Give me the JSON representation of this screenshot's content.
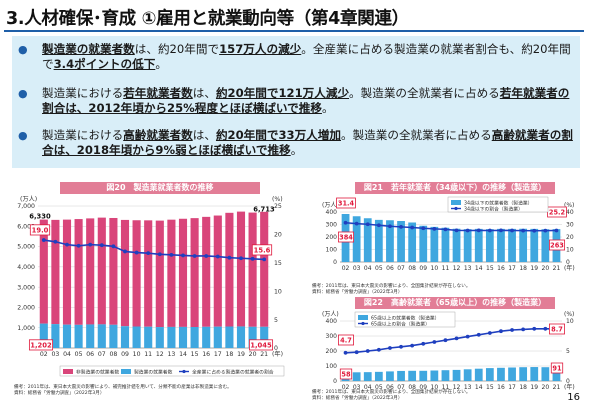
{
  "title": "3.人材確保･育成 ①雇用と就業動向等（第4章関連）",
  "bullets": [
    {
      "parts": [
        {
          "t": "製造業の就業者数",
          "em": true
        },
        {
          "t": "は、約20年間で",
          "em": false
        },
        {
          "t": "157万人の減少",
          "em": true
        },
        {
          "t": "。全産業に占める製造業の就業者割合も、約20年間で",
          "em": false
        },
        {
          "t": "3.4ポイントの低下",
          "em": true
        },
        {
          "t": "。",
          "em": false
        }
      ]
    },
    {
      "parts": [
        {
          "t": "製造業における",
          "em": false
        },
        {
          "t": "若年就業者数",
          "em": true
        },
        {
          "t": "は、",
          "em": false
        },
        {
          "t": "約20年間で121万人減少",
          "em": true
        },
        {
          "t": "。製造業の全就業者に占める",
          "em": false
        },
        {
          "t": "若年就業者の割合は、2012年頃から25%程度とほぼ横ばいで推移",
          "em": true
        },
        {
          "t": "。",
          "em": false
        }
      ]
    },
    {
      "parts": [
        {
          "t": "製造業における",
          "em": false
        },
        {
          "t": "高齢就業者数",
          "em": true
        },
        {
          "t": "は、",
          "em": false
        },
        {
          "t": "約20年間で33万人増加",
          "em": true
        },
        {
          "t": "。製造業の全就業者に占める",
          "em": false
        },
        {
          "t": "高齢就業者の割合は、2018年頃から9%弱とほぼ横ばいで推移",
          "em": true
        },
        {
          "t": "。",
          "em": false
        }
      ]
    }
  ],
  "chart_data": [
    {
      "type": "bar",
      "title": "図20　製造業就業者数の推移",
      "xlabel": "",
      "ylabel": "(万人)",
      "y2label": "(%)",
      "ylim": [
        0,
        7000
      ],
      "yticks": [
        "0",
        "1,000",
        "2,000",
        "3,000",
        "4,000",
        "5,000",
        "6,000",
        "7,000"
      ],
      "y2lim": [
        0,
        25
      ],
      "y2ticks": [
        "0",
        "5",
        "10",
        "15",
        "20",
        "25"
      ],
      "categories": [
        "02",
        "03",
        "04",
        "05",
        "06",
        "07",
        "08",
        "09",
        "10",
        "11",
        "12",
        "13",
        "14",
        "15",
        "16",
        "17",
        "18",
        "19",
        "20",
        "21"
      ],
      "x_unit": "(年)",
      "series": [
        {
          "name": "非製造業の就業者数",
          "kind": "bar-top",
          "color": "#d9457a",
          "values": [
            6330,
            6316,
            6329,
            6356,
            6389,
            6427,
            6409,
            6314,
            6298,
            6293,
            6280,
            6326,
            6371,
            6402,
            6465,
            6530,
            6664,
            6724,
            6676,
            6713
          ]
        },
        {
          "name": "製造業の就業者数",
          "kind": "bar-bottom",
          "color": "#3fa7df",
          "values": [
            1202,
            1178,
            1150,
            1142,
            1161,
            1165,
            1144,
            1073,
            1060,
            1049,
            1032,
            1039,
            1040,
            1035,
            1045,
            1052,
            1060,
            1063,
            1045,
            1045
          ]
        },
        {
          "name": "全産業に占める製造業の就業者の割合",
          "kind": "line-right",
          "color": "#1f3fbf",
          "values": [
            19.0,
            18.7,
            18.2,
            18.0,
            18.2,
            18.1,
            17.9,
            17.0,
            16.8,
            16.7,
            16.5,
            16.4,
            16.3,
            16.2,
            16.2,
            16.1,
            15.9,
            15.8,
            15.7,
            15.6
          ]
        }
      ],
      "labels": {
        "first_total": "6,330",
        "last_total": "6,713",
        "first_mfg": "1,202",
        "last_mfg": "1,045",
        "first_pct": "19.0",
        "last_pct": "15.6"
      },
      "legend": [
        "非製造業の就業者数",
        "製造業の就業者数",
        "全産業に占める製造業の就業者の割合"
      ],
      "notes": [
        "備考：2011年は、東日本大震災の影響により、補完推計値を用いて、分類不能の産業は非製造業に含む。",
        "資料：総務省「労働力調査」（2022年3月）"
      ]
    },
    {
      "type": "bar",
      "title": "図21　若年就業者（34歳以下）の推移（製造業）",
      "ylabel": "(万人)",
      "y2label": "(%)",
      "ylim": [
        0,
        400
      ],
      "yticks": [
        "0",
        "100",
        "200",
        "300",
        "400"
      ],
      "y2lim": [
        0,
        40
      ],
      "y2ticks": [
        "0",
        "10",
        "20",
        "30",
        "40"
      ],
      "categories": [
        "02",
        "03",
        "04",
        "05",
        "06",
        "07",
        "08",
        "09",
        "10",
        "11",
        "12",
        "13",
        "14",
        "15",
        "16",
        "17",
        "18",
        "19",
        "20",
        "21"
      ],
      "x_unit": "(年)",
      "series": [
        {
          "name": "34歳以下の就業者数（製造業）",
          "kind": "bar",
          "color": "#3fa7df",
          "values": [
            384,
            366,
            350,
            337,
            334,
            328,
            316,
            290,
            281,
            274,
            266,
            263,
            265,
            263,
            265,
            265,
            266,
            265,
            262,
            263
          ]
        },
        {
          "name": "34歳以下の割合（製造業）",
          "kind": "line-right",
          "color": "#1f3fbf",
          "values": [
            31.4,
            30.7,
            30.2,
            29.4,
            28.6,
            28.1,
            27.6,
            27.0,
            26.5,
            26.1,
            25.3,
            25.2,
            25.3,
            25.2,
            25.3,
            25.2,
            25.1,
            25.0,
            25.1,
            25.2
          ]
        }
      ],
      "labels": {
        "first_bar": "384",
        "last_bar": "263",
        "first_pct": "31.4",
        "last_pct": "25.2"
      },
      "legend": [
        "34歳以下の就業者数（製造業）",
        "34歳以下の割合（製造業）"
      ],
      "notes": [
        "備考：2011年は、東日本大震災の影響により、全国集計結果が存在しない。",
        "資料：総務省「労働力調査」（2022年3月）"
      ]
    },
    {
      "type": "bar",
      "title": "図22　高齢就業者（65歳以上）の推移（製造業）",
      "ylabel": "(万人)",
      "y2label": "(%)",
      "ylim": [
        0,
        400
      ],
      "yticks": [
        "0",
        "100",
        "200",
        "300",
        "400"
      ],
      "y2lim": [
        0,
        10
      ],
      "y2ticks": [
        "0",
        "5",
        "10"
      ],
      "categories": [
        "02",
        "03",
        "04",
        "05",
        "06",
        "07",
        "08",
        "09",
        "10",
        "11",
        "12",
        "13",
        "14",
        "15",
        "16",
        "17",
        "18",
        "19",
        "20",
        "21"
      ],
      "x_unit": "(年)",
      "series": [
        {
          "name": "65歳以上の就業者数（製造業）",
          "kind": "bar",
          "color": "#3fa7df",
          "values": [
            58,
            58,
            59,
            61,
            64,
            67,
            68,
            68,
            70,
            72,
            74,
            78,
            82,
            86,
            88,
            90,
            92,
            93,
            92,
            91
          ]
        },
        {
          "name": "65歳以上の割合（製造業）",
          "kind": "line-right",
          "color": "#1f3fbf",
          "values": [
            4.7,
            4.8,
            5.0,
            5.2,
            5.5,
            5.7,
            5.9,
            6.2,
            6.5,
            6.8,
            7.1,
            7.4,
            7.7,
            8.0,
            8.3,
            8.5,
            8.6,
            8.7,
            8.7,
            8.7
          ]
        }
      ],
      "labels": {
        "first_bar": "58",
        "last_bar": "91",
        "first_pct": "4.7",
        "last_pct": "8.7"
      },
      "legend": [
        "65歳以上の就業者数（製造業）",
        "65歳以上の割合（製造業）"
      ],
      "notes": [
        "備考：2011年は、東日本大震災の影響により、全国集計結果が存在しない。",
        "資料：総務省「労働力調査」（2022年3月）"
      ]
    }
  ],
  "page_number": "16"
}
